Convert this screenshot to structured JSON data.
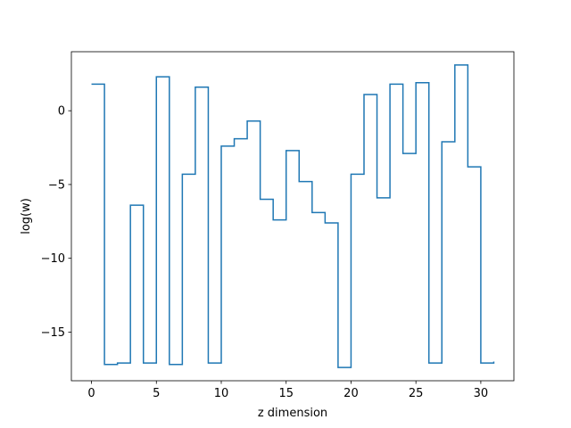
{
  "chart_data": {
    "type": "line",
    "drawstyle": "steps-post",
    "title": "",
    "xlabel": "z dimension",
    "ylabel": "log(w)",
    "xlim": [
      -1.55,
      32.55
    ],
    "ylim": [
      -18.3,
      4.0
    ],
    "xticks": [
      0,
      5,
      10,
      15,
      20,
      25,
      30
    ],
    "yticks": [
      -15,
      -10,
      -5,
      0
    ],
    "ytick_labels": [
      "−15",
      "−10",
      "−5",
      "0"
    ],
    "grid": false,
    "legend": "none",
    "series": [
      {
        "color": "#1f77b4",
        "x": [
          0,
          1,
          2,
          3,
          4,
          5,
          6,
          7,
          8,
          9,
          10,
          11,
          12,
          13,
          14,
          15,
          16,
          17,
          18,
          19,
          20,
          21,
          22,
          23,
          24,
          25,
          26,
          27,
          28,
          29,
          30,
          31
        ],
        "y": [
          1.8,
          -17.2,
          -17.1,
          -6.4,
          -17.1,
          2.3,
          -17.2,
          -4.3,
          1.6,
          -17.1,
          -2.4,
          -1.9,
          -0.7,
          -6.0,
          -7.4,
          -2.7,
          -4.8,
          -6.9,
          -7.6,
          -17.4,
          -4.3,
          1.1,
          -5.9,
          1.8,
          -2.9,
          1.9,
          -17.1,
          -2.1,
          3.1,
          -3.8,
          -17.1,
          -17.0
        ]
      }
    ]
  }
}
